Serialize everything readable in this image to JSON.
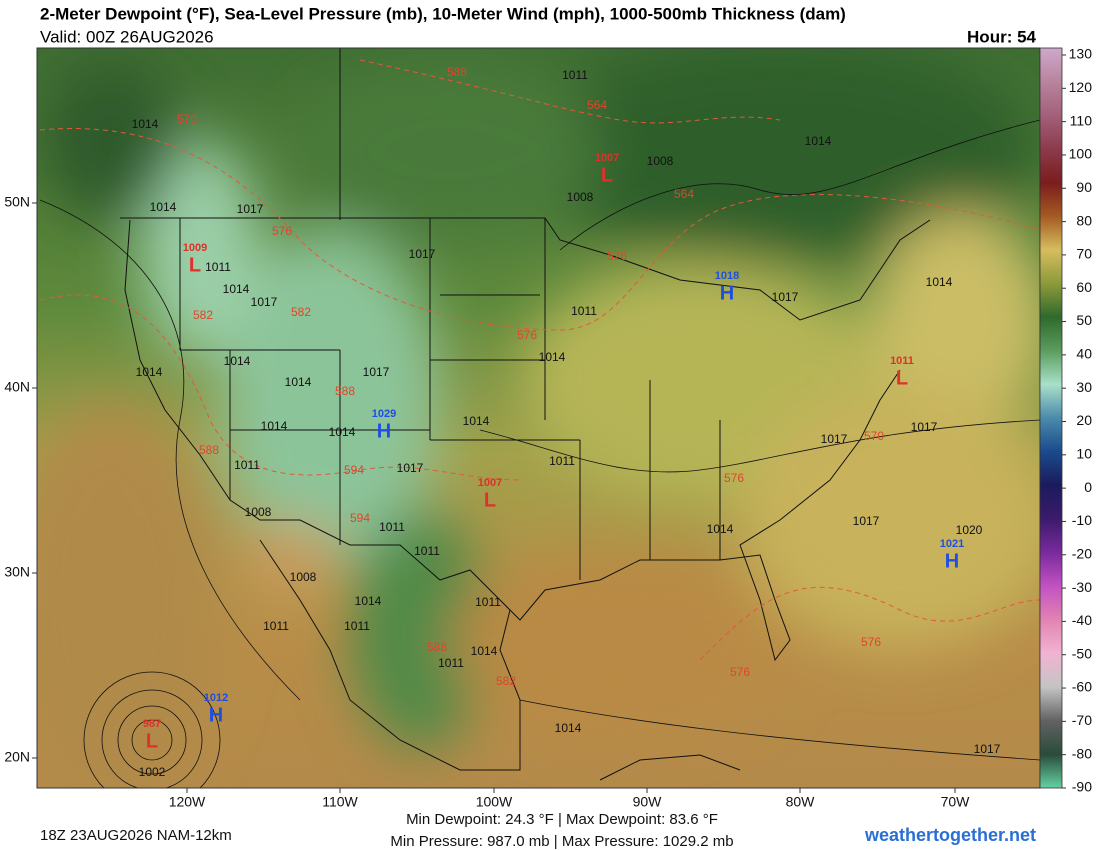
{
  "header": {
    "title": "2-Meter Dewpoint (°F), Sea-Level Pressure (mb), 10-Meter Wind (mph), 1000-500mb Thickness (dam)",
    "valid": "Valid: 00Z 26AUG2026",
    "hour": "Hour: 54"
  },
  "colorbar": {
    "ticks": [
      130,
      120,
      110,
      100,
      90,
      80,
      70,
      60,
      50,
      40,
      30,
      20,
      10,
      0,
      -10,
      -20,
      -30,
      -40,
      -50,
      -60,
      -70,
      -80,
      -90
    ],
    "colors": [
      "#cfa8cc",
      "#b8849e",
      "#a3607a",
      "#8c3b4c",
      "#7a1d1d",
      "#a45a22",
      "#d6bd5e",
      "#8d9a3b",
      "#2f6a2c",
      "#5c9c5e",
      "#a9e0c9",
      "#4a8bac",
      "#1b4a8c",
      "#1b1b5c",
      "#3b1b6c",
      "#7a2a9c",
      "#c252c2",
      "#e283b2",
      "#f2b3d2",
      "#c4c4c4",
      "#626262",
      "#2b4b3b",
      "#62d2a2"
    ]
  },
  "axes": {
    "lon_labels": [
      "120W",
      "110W",
      "100W",
      "90W",
      "80W",
      "70W"
    ],
    "lat_labels": [
      "50N",
      "40N",
      "30N",
      "20N"
    ]
  },
  "pressure_centers": [
    {
      "type": "L",
      "pressure": "1009"
    },
    {
      "type": "L",
      "pressure": "1007"
    },
    {
      "type": "H",
      "pressure": "1018"
    },
    {
      "type": "H",
      "pressure": "1029"
    },
    {
      "type": "L",
      "pressure": "1007"
    },
    {
      "type": "L",
      "pressure": "1011"
    },
    {
      "type": "H",
      "pressure": "1021"
    },
    {
      "type": "H",
      "pressure": "1012"
    },
    {
      "type": "L",
      "pressure": "987"
    }
  ],
  "isobar_labels": [
    "1014",
    "1014",
    "1017",
    "1011",
    "1008",
    "1008",
    "1017",
    "1011",
    "1014",
    "1017",
    "1011",
    "1014",
    "1014",
    "1014",
    "1014",
    "1017",
    "1014",
    "1014",
    "1014",
    "1011",
    "1017",
    "1017",
    "1017",
    "1017",
    "1020",
    "1014",
    "1011",
    "1008",
    "1011",
    "1011",
    "1008",
    "1011",
    "1014",
    "1011",
    "1011",
    "1011",
    "1014",
    "1014",
    "1017",
    "1002",
    "1014",
    "1014",
    "1017"
  ],
  "thickness_labels": [
    "588",
    "570",
    "564",
    "564",
    "576",
    "576",
    "582",
    "582",
    "576",
    "588",
    "588",
    "594",
    "594",
    "570",
    "576",
    "588",
    "582",
    "576",
    "576"
  ],
  "footer": {
    "run": "18Z 23AUG2026 NAM-12km",
    "dewpoint": "Min Dewpoint: 24.3 °F | Max Dewpoint: 83.6 °F",
    "pressure": "Min Pressure: 987.0 mb | Max Pressure: 1029.2 mb",
    "site": "weathertogether.net"
  }
}
